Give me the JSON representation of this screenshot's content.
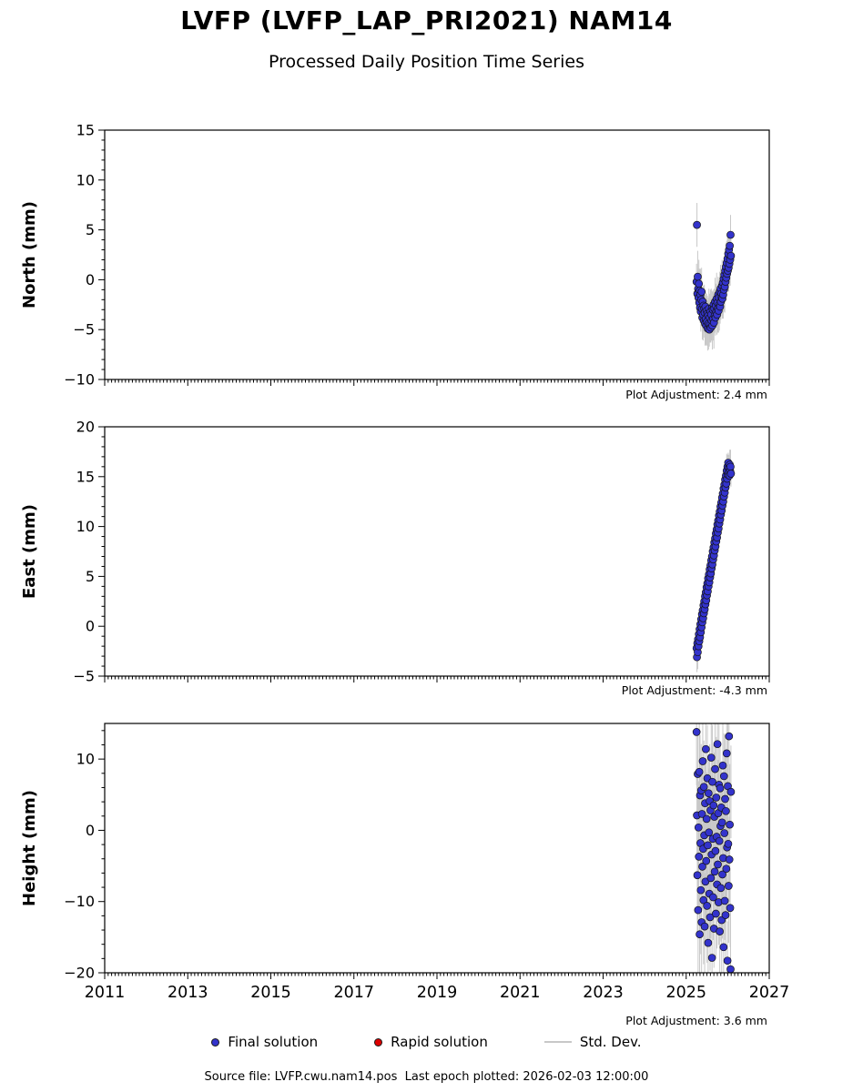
{
  "header": {
    "title": "LVFP (LVFP_LAP_PRI2021) NAM14",
    "subtitle": "Processed Daily Position Time Series"
  },
  "legend": {
    "final": "Final solution",
    "rapid": "Rapid solution",
    "stddev": "Std. Dev."
  },
  "footer": {
    "text": "Source file: LVFP.cwu.nam14.pos  Last epoch plotted: 2026-02-03 12:00:00"
  },
  "colors": {
    "final": "#3333cc",
    "rapid": "#dd0000",
    "stddev": "#c8c8c8",
    "axis": "#000000"
  },
  "chart_data": {
    "type": "scatter",
    "xlim": [
      2011,
      2027
    ],
    "xticks": [
      2011,
      2013,
      2015,
      2017,
      2019,
      2021,
      2023,
      2025,
      2027
    ],
    "grid": false,
    "legend_position": "bottom",
    "x": [
      2025.25,
      2025.2593,
      2025.2686,
      2025.2779,
      2025.2872,
      2025.2965,
      2025.3058,
      2025.3151,
      2025.3244,
      2025.3337,
      2025.343,
      2025.3523,
      2025.3616,
      2025.3709,
      2025.3802,
      2025.3895,
      2025.3988,
      2025.4081,
      2025.4174,
      2025.4267,
      2025.436,
      2025.4453,
      2025.4546,
      2025.4639,
      2025.4732,
      2025.4825,
      2025.4918,
      2025.5011,
      2025.5104,
      2025.5197,
      2025.529,
      2025.5383,
      2025.5476,
      2025.5569,
      2025.5662,
      2025.5755,
      2025.5848,
      2025.5941,
      2025.6034,
      2025.6127,
      2025.622,
      2025.6313,
      2025.6406,
      2025.6499,
      2025.6592,
      2025.6685,
      2025.6778,
      2025.6871,
      2025.6964,
      2025.7057,
      2025.715,
      2025.7243,
      2025.7336,
      2025.7429,
      2025.7522,
      2025.7615,
      2025.7708,
      2025.7801,
      2025.7894,
      2025.7987,
      2025.808,
      2025.8173,
      2025.8266,
      2025.8359,
      2025.8452,
      2025.8545,
      2025.8638,
      2025.8731,
      2025.8824,
      2025.8917,
      2025.901,
      2025.9103,
      2025.9196,
      2025.9289,
      2025.9382,
      2025.9475,
      2025.9568,
      2025.9661,
      2025.9754,
      2025.9847,
      2025.994,
      2026.0033,
      2026.0126,
      2026.0219,
      2026.0312,
      2026.0405,
      2026.0498,
      2026.0591,
      2026.0684,
      2026.0777
    ],
    "subplots": [
      {
        "id": "north",
        "ylabel": "North (mm)",
        "ylim": [
          -10,
          15
        ],
        "yticks": [
          -10,
          -5,
          0,
          5,
          10,
          15
        ],
        "adjustment": "Plot Adjustment: 2.4 mm",
        "y": [
          -0.2,
          5.5,
          -1.4,
          0.3,
          -0.9,
          -1.8,
          -0.4,
          -2.3,
          -1.1,
          -2.8,
          -1.5,
          -3.2,
          -2.0,
          -1.2,
          -2.9,
          -3.8,
          -2.2,
          -3.5,
          -2.6,
          -4.1,
          -2.9,
          -3.3,
          -4.4,
          -2.7,
          -3.9,
          -4.6,
          -3.1,
          -4.2,
          -3.4,
          -4.9,
          -3.6,
          -4.4,
          -2.9,
          -5.0,
          -3.8,
          -4.5,
          -3.2,
          -4.8,
          -3.5,
          -4.1,
          -2.8,
          -4.6,
          -3.0,
          -3.9,
          -2.5,
          -4.3,
          -2.9,
          -3.6,
          -2.2,
          -3.8,
          -2.6,
          -3.2,
          -1.9,
          -3.5,
          -2.3,
          -2.9,
          -1.5,
          -3.1,
          -1.8,
          -2.5,
          -1.2,
          -2.7,
          -0.9,
          -2.2,
          -1.4,
          -1.8,
          -0.6,
          -1.9,
          -0.3,
          -1.5,
          0.1,
          -1.0,
          0.5,
          -0.7,
          0.9,
          -0.2,
          1.3,
          0.2,
          1.7,
          0.6,
          2.1,
          0.9,
          2.6,
          1.2,
          3.0,
          1.6,
          3.4,
          2.0,
          4.5,
          2.4
        ],
        "err": [
          1.8,
          2.2,
          1.5,
          2.6,
          2.0,
          1.7,
          2.4,
          1.8,
          2.2,
          1.5,
          2.6,
          2.0,
          1.7,
          2.4,
          1.8,
          2.2,
          1.5,
          2.6,
          2.0,
          1.7,
          2.4,
          1.8,
          2.2,
          1.5,
          2.6,
          2.0,
          1.7,
          2.4,
          1.8,
          2.2,
          1.5,
          2.6,
          2.0,
          1.7,
          2.4,
          1.8,
          2.2,
          1.5,
          2.6,
          2.0,
          1.7,
          2.4,
          1.8,
          2.2,
          1.5,
          2.6,
          2.0,
          1.7,
          2.4,
          1.8,
          2.2,
          1.5,
          2.6,
          2.0,
          1.7,
          2.4,
          1.8,
          2.2,
          1.5,
          2.6,
          2.0,
          1.7,
          2.4,
          1.8,
          2.2,
          1.5,
          2.6,
          2.0,
          1.7,
          2.4,
          1.8,
          2.2,
          1.5,
          2.6,
          2.0,
          1.7,
          2.4,
          1.8,
          2.2,
          1.5,
          2.6,
          2.0,
          1.7,
          2.4,
          1.8,
          2.2,
          1.5,
          2.6,
          2.0,
          1.7
        ]
      },
      {
        "id": "east",
        "ylabel": "East (mm)",
        "ylim": [
          -5,
          20
        ],
        "yticks": [
          -5,
          0,
          5,
          10,
          15,
          20
        ],
        "adjustment": "Plot Adjustment: -4.3 mm",
        "y": [
          -2.2,
          -3.1,
          -1.7,
          -2.6,
          -1.3,
          -2.0,
          -0.8,
          -1.5,
          -0.3,
          -1.1,
          0.2,
          -0.6,
          0.7,
          -0.1,
          1.2,
          0.4,
          1.6,
          0.8,
          2.1,
          1.3,
          2.5,
          1.7,
          3.0,
          2.2,
          3.4,
          2.6,
          3.9,
          3.1,
          4.3,
          3.5,
          4.8,
          4.0,
          5.2,
          4.4,
          5.7,
          4.9,
          6.1,
          5.3,
          6.6,
          5.8,
          7.0,
          6.2,
          7.5,
          6.7,
          7.9,
          7.1,
          8.4,
          7.6,
          8.8,
          8.0,
          9.3,
          8.5,
          9.7,
          8.9,
          10.2,
          9.4,
          10.6,
          9.8,
          11.1,
          10.3,
          11.5,
          10.7,
          12.0,
          11.2,
          12.4,
          11.6,
          12.9,
          12.1,
          13.3,
          12.5,
          13.8,
          13.0,
          14.2,
          13.4,
          14.7,
          13.9,
          15.1,
          14.3,
          15.6,
          14.8,
          16.0,
          15.2,
          16.4,
          15.4,
          15.9,
          15.1,
          16.2,
          15.6,
          16.0,
          15.3
        ],
        "err": [
          1.2,
          1.5,
          1.0,
          1.7,
          1.3,
          1.2,
          1.5,
          1.0,
          1.7,
          1.3,
          1.2,
          1.5,
          1.0,
          1.7,
          1.3,
          1.2,
          1.5,
          1.0,
          1.7,
          1.3,
          1.2,
          1.5,
          1.0,
          1.7,
          1.3,
          1.2,
          1.5,
          1.0,
          1.7,
          1.3,
          1.2,
          1.5,
          1.0,
          1.7,
          1.3,
          1.2,
          1.5,
          1.0,
          1.7,
          1.3,
          1.2,
          1.5,
          1.0,
          1.7,
          1.3,
          1.2,
          1.5,
          1.0,
          1.7,
          1.3,
          1.2,
          1.5,
          1.0,
          1.7,
          1.3,
          1.2,
          1.5,
          1.0,
          1.7,
          1.3,
          1.2,
          1.5,
          1.0,
          1.7,
          1.3,
          1.2,
          1.5,
          1.0,
          1.7,
          1.3,
          1.2,
          1.5,
          1.0,
          1.7,
          1.3,
          1.2,
          1.5,
          1.0,
          1.7,
          1.3,
          1.2,
          1.5,
          1.0,
          1.7,
          1.3,
          1.2,
          1.5,
          1.0,
          1.7,
          1.3
        ]
      },
      {
        "id": "height",
        "ylabel": "Height (mm)",
        "ylim": [
          -20,
          15
        ],
        "yticks": [
          -20,
          -10,
          0,
          10
        ],
        "adjustment": "Plot Adjustment: 3.6 mm",
        "y": [
          13.8,
          2.1,
          -6.3,
          7.9,
          -11.2,
          0.4,
          -3.7,
          8.2,
          -14.6,
          4.9,
          -1.8,
          -8.4,
          5.6,
          -12.9,
          2.3,
          -5.1,
          9.7,
          -2.6,
          -9.8,
          6.1,
          -0.7,
          -13.5,
          3.8,
          -7.2,
          11.4,
          -4.3,
          1.6,
          -10.6,
          7.3,
          -2.1,
          -15.8,
          5.2,
          -0.3,
          -8.9,
          4.1,
          -12.2,
          2.8,
          -6.7,
          10.2,
          -3.4,
          -17.9,
          6.8,
          -1.2,
          -9.4,
          3.5,
          -13.8,
          1.9,
          -5.8,
          8.6,
          -2.9,
          -11.7,
          4.6,
          -0.9,
          -7.6,
          12.1,
          -4.8,
          2.4,
          -10.1,
          6.4,
          -1.5,
          -14.2,
          5.9,
          0.6,
          -8.1,
          3.2,
          -12.6,
          1.1,
          -6.2,
          9.1,
          -3.9,
          -16.4,
          7.6,
          -0.4,
          -9.9,
          4.4,
          -11.9,
          2.7,
          -5.4,
          10.8,
          -2.4,
          -18.3,
          6.2,
          -1.9,
          -7.8,
          13.2,
          -4.1,
          0.8,
          -10.9,
          -19.5,
          5.4
        ],
        "err": [
          7.5,
          6.0,
          8.5,
          5.5,
          9.0,
          6.5,
          8.0,
          7.5,
          6.0,
          8.5,
          5.5,
          9.0,
          6.5,
          8.0,
          7.5,
          6.0,
          8.5,
          5.5,
          9.0,
          6.5,
          8.0,
          7.5,
          6.0,
          8.5,
          5.5,
          9.0,
          6.5,
          8.0,
          7.5,
          6.0,
          8.5,
          5.5,
          9.0,
          6.5,
          8.0,
          7.5,
          6.0,
          8.5,
          5.5,
          9.0,
          6.5,
          8.0,
          7.5,
          6.0,
          8.5,
          5.5,
          9.0,
          6.5,
          8.0,
          7.5,
          6.0,
          8.5,
          5.5,
          9.0,
          6.5,
          8.0,
          7.5,
          6.0,
          8.5,
          5.5,
          9.0,
          6.5,
          8.0,
          7.5,
          6.0,
          8.5,
          5.5,
          9.0,
          6.5,
          8.0,
          7.5,
          6.0,
          8.5,
          5.5,
          9.0,
          6.5,
          8.0,
          7.5,
          6.0,
          8.5,
          5.5,
          9.0,
          6.5,
          8.0,
          7.5,
          6.0,
          8.5,
          5.5,
          9.0,
          6.5
        ]
      }
    ]
  }
}
